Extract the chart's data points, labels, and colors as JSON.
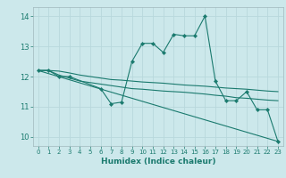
{
  "xlabel": "Humidex (Indice chaleur)",
  "xlim": [
    -0.5,
    23.5
  ],
  "ylim": [
    9.7,
    14.3
  ],
  "xticks": [
    0,
    1,
    2,
    3,
    4,
    5,
    6,
    7,
    8,
    9,
    10,
    11,
    12,
    13,
    14,
    15,
    16,
    17,
    18,
    19,
    20,
    21,
    22,
    23
  ],
  "yticks": [
    10,
    11,
    12,
    13,
    14
  ],
  "bg_color": "#cce8eb",
  "line_color": "#1a7a6e",
  "grid_color": "#b8d8dc",
  "line1": {
    "x": [
      0,
      1,
      2,
      3,
      6,
      7,
      8,
      9,
      10,
      11,
      12,
      13,
      14,
      15,
      16,
      17,
      18,
      19,
      20,
      21,
      22,
      23
    ],
    "y": [
      12.2,
      12.2,
      12.0,
      12.0,
      11.6,
      11.1,
      11.15,
      12.5,
      13.1,
      13.1,
      12.8,
      13.4,
      13.35,
      13.35,
      14.0,
      11.85,
      11.2,
      11.2,
      11.5,
      10.9,
      10.9,
      9.85
    ]
  },
  "line2_x": [
    0,
    23
  ],
  "line2_y": [
    12.2,
    9.85
  ],
  "line3": {
    "x": [
      0,
      1,
      2,
      3,
      4,
      5,
      6,
      7,
      8,
      9,
      10,
      11,
      12,
      13,
      14,
      15,
      16,
      17,
      18,
      19,
      20,
      21,
      22,
      23
    ],
    "y": [
      12.2,
      12.2,
      12.05,
      11.95,
      11.85,
      11.8,
      11.75,
      11.7,
      11.65,
      11.6,
      11.58,
      11.55,
      11.52,
      11.5,
      11.48,
      11.45,
      11.42,
      11.38,
      11.35,
      11.3,
      11.28,
      11.25,
      11.22,
      11.2
    ]
  },
  "line4": {
    "x": [
      0,
      1,
      2,
      3,
      4,
      5,
      6,
      7,
      8,
      9,
      10,
      11,
      12,
      13,
      14,
      15,
      16,
      17,
      18,
      19,
      20,
      21,
      22,
      23
    ],
    "y": [
      12.2,
      12.2,
      12.18,
      12.12,
      12.05,
      12.0,
      11.95,
      11.9,
      11.88,
      11.85,
      11.82,
      11.8,
      11.78,
      11.75,
      11.72,
      11.7,
      11.68,
      11.65,
      11.62,
      11.6,
      11.58,
      11.55,
      11.52,
      11.5
    ]
  }
}
